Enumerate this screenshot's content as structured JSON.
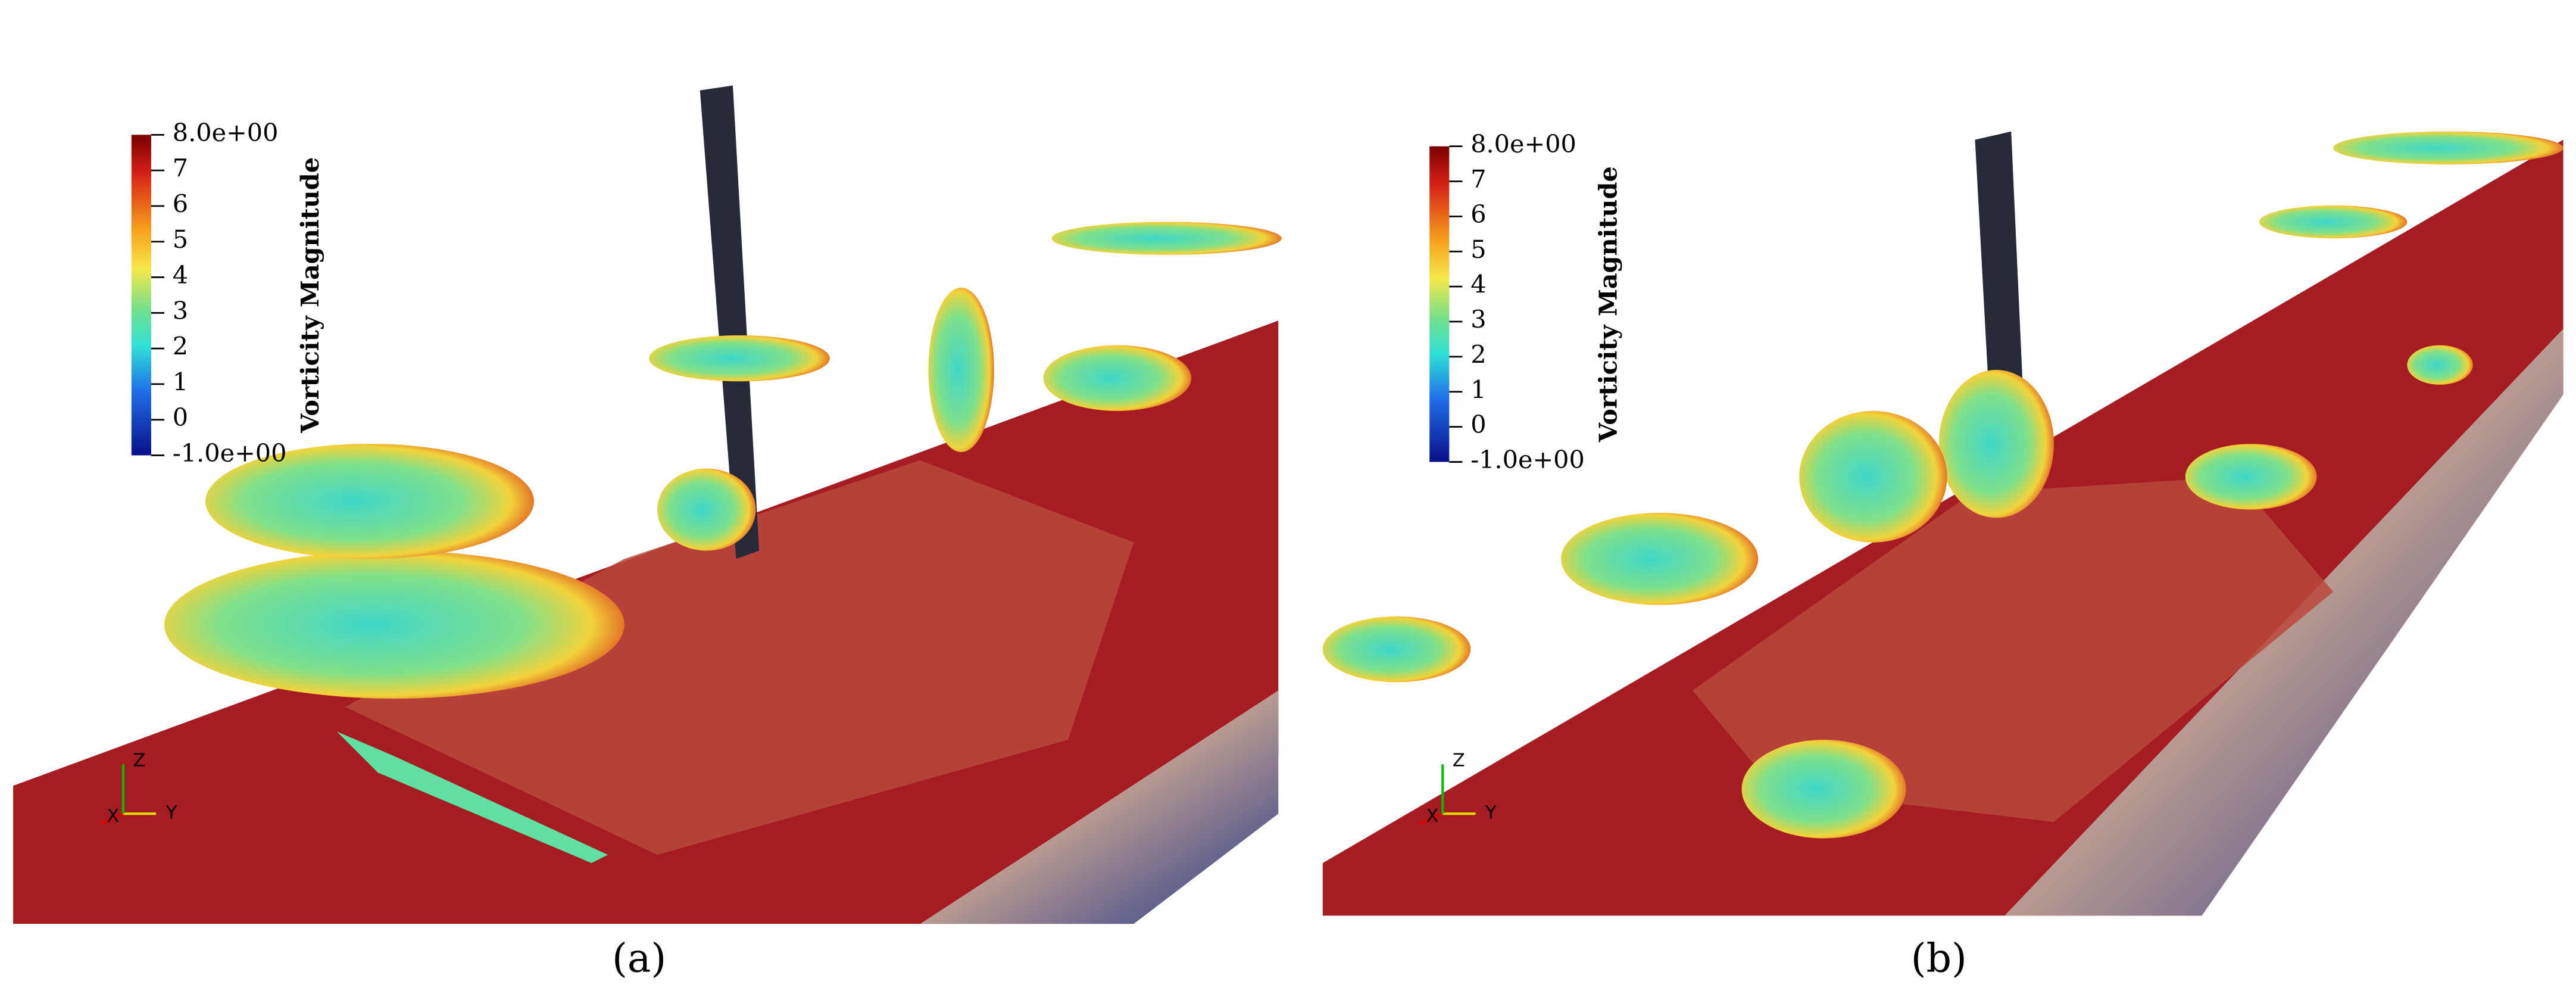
{
  "panels": [
    {
      "label": "(a)",
      "colorbar": {
        "title": "Vorticity Magnitude",
        "range": [
          -1,
          8
        ],
        "ticks": [
          {
            "value": 8,
            "label": "8.0e+00"
          },
          7,
          6,
          5,
          4,
          3,
          2,
          1,
          0,
          {
            "value": -1,
            "label": "-1.0e+00"
          }
        ]
      },
      "axes": [
        "X",
        "Y",
        "Z"
      ]
    },
    {
      "label": "(b)",
      "colorbar": {
        "title": "Vorticity Magnitude",
        "range": [
          -1,
          8
        ],
        "ticks": [
          {
            "value": 8,
            "label": "8.0e+00"
          },
          7,
          6,
          5,
          4,
          3,
          2,
          1,
          0,
          {
            "value": -1,
            "label": "-1.0e+00"
          }
        ]
      },
      "axes": [
        "X",
        "Y",
        "Z"
      ]
    }
  ]
}
